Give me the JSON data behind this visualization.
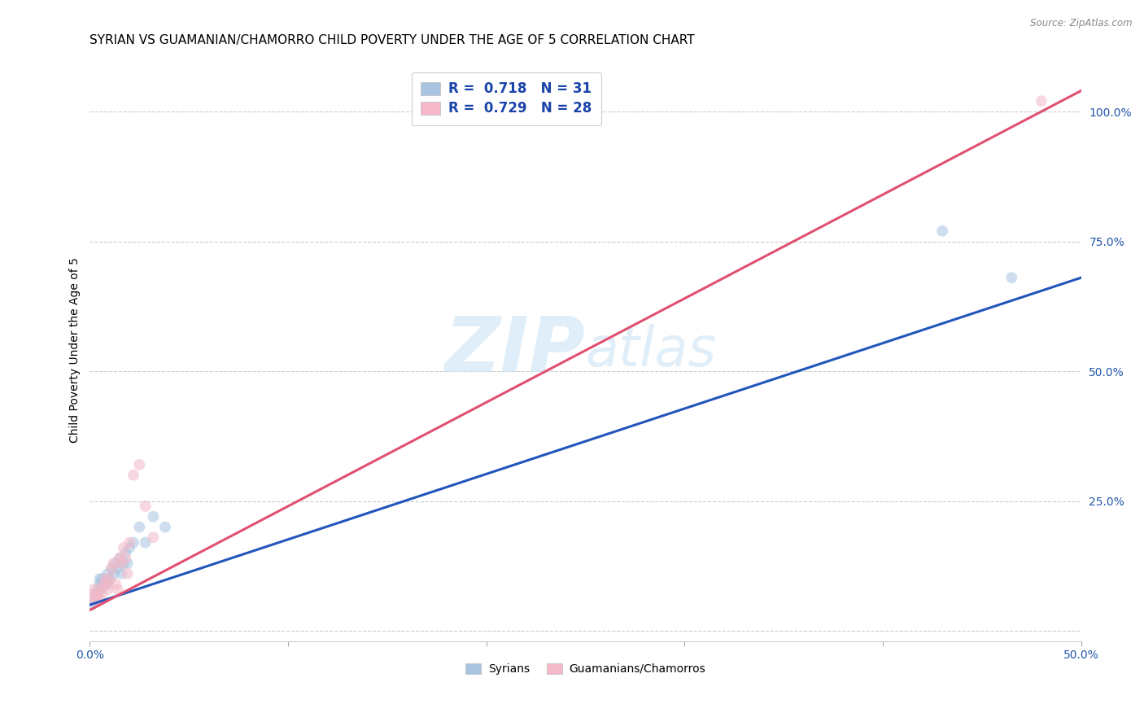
{
  "title": "SYRIAN VS GUAMANIAN/CHAMORRO CHILD POVERTY UNDER THE AGE OF 5 CORRELATION CHART",
  "source": "Source: ZipAtlas.com",
  "ylabel_label": "Child Poverty Under the Age of 5",
  "xlim": [
    0.0,
    0.5
  ],
  "ylim": [
    -0.02,
    1.1
  ],
  "xticks": [
    0.0,
    0.1,
    0.2,
    0.3,
    0.4,
    0.5
  ],
  "yticks": [
    0.0,
    0.25,
    0.5,
    0.75,
    1.0
  ],
  "ytick_labels": [
    "",
    "25.0%",
    "50.0%",
    "75.0%",
    "100.0%"
  ],
  "xtick_labels": [
    "0.0%",
    "",
    "",
    "",
    "",
    "50.0%"
  ],
  "grid_color": "#cccccc",
  "background_color": "#ffffff",
  "watermark_zip": "ZIP",
  "watermark_atlas": "atlas",
  "syrian_color": "#a8c4e0",
  "guamanian_color": "#f4b8c8",
  "syrian_line_color": "#2255bb",
  "guamanian_line_color": "#e05070",
  "legend_r_syrian": "0.718",
  "legend_n_syrian": "31",
  "legend_r_guamanian": "0.729",
  "legend_n_guamanian": "28",
  "syrian_label": "Syrians",
  "guamanian_label": "Guamanians/Chamorros",
  "syrian_scatter_x": [
    0.001,
    0.002,
    0.003,
    0.004,
    0.004,
    0.005,
    0.005,
    0.006,
    0.006,
    0.007,
    0.008,
    0.009,
    0.009,
    0.01,
    0.011,
    0.012,
    0.013,
    0.014,
    0.015,
    0.016,
    0.017,
    0.018,
    0.019,
    0.02,
    0.022,
    0.025,
    0.028,
    0.032,
    0.038,
    0.43,
    0.465
  ],
  "syrian_scatter_y": [
    0.05,
    0.06,
    0.07,
    0.07,
    0.08,
    0.09,
    0.1,
    0.08,
    0.1,
    0.09,
    0.1,
    0.09,
    0.11,
    0.1,
    0.12,
    0.11,
    0.13,
    0.12,
    0.14,
    0.11,
    0.13,
    0.15,
    0.13,
    0.16,
    0.17,
    0.2,
    0.17,
    0.22,
    0.2,
    0.77,
    0.68
  ],
  "guamanian_scatter_x": [
    0.0,
    0.001,
    0.002,
    0.003,
    0.004,
    0.005,
    0.005,
    0.006,
    0.007,
    0.008,
    0.009,
    0.009,
    0.01,
    0.011,
    0.012,
    0.013,
    0.014,
    0.015,
    0.016,
    0.017,
    0.018,
    0.019,
    0.02,
    0.022,
    0.025,
    0.028,
    0.032,
    0.48
  ],
  "guamanian_scatter_y": [
    0.06,
    0.07,
    0.08,
    0.06,
    0.07,
    0.06,
    0.08,
    0.07,
    0.09,
    0.1,
    0.09,
    0.08,
    0.1,
    0.12,
    0.13,
    0.09,
    0.08,
    0.14,
    0.13,
    0.16,
    0.14,
    0.11,
    0.17,
    0.3,
    0.32,
    0.24,
    0.18,
    1.02
  ],
  "syrian_line_x": [
    0.0,
    0.5
  ],
  "syrian_line_y": [
    0.05,
    0.68
  ],
  "guamanian_line_x": [
    0.0,
    0.5
  ],
  "guamanian_line_y": [
    0.04,
    1.04
  ],
  "scatter_size": 100,
  "scatter_alpha": 0.55,
  "title_fontsize": 11,
  "axis_label_fontsize": 10,
  "tick_fontsize": 10,
  "tick_color": "#2255aa"
}
